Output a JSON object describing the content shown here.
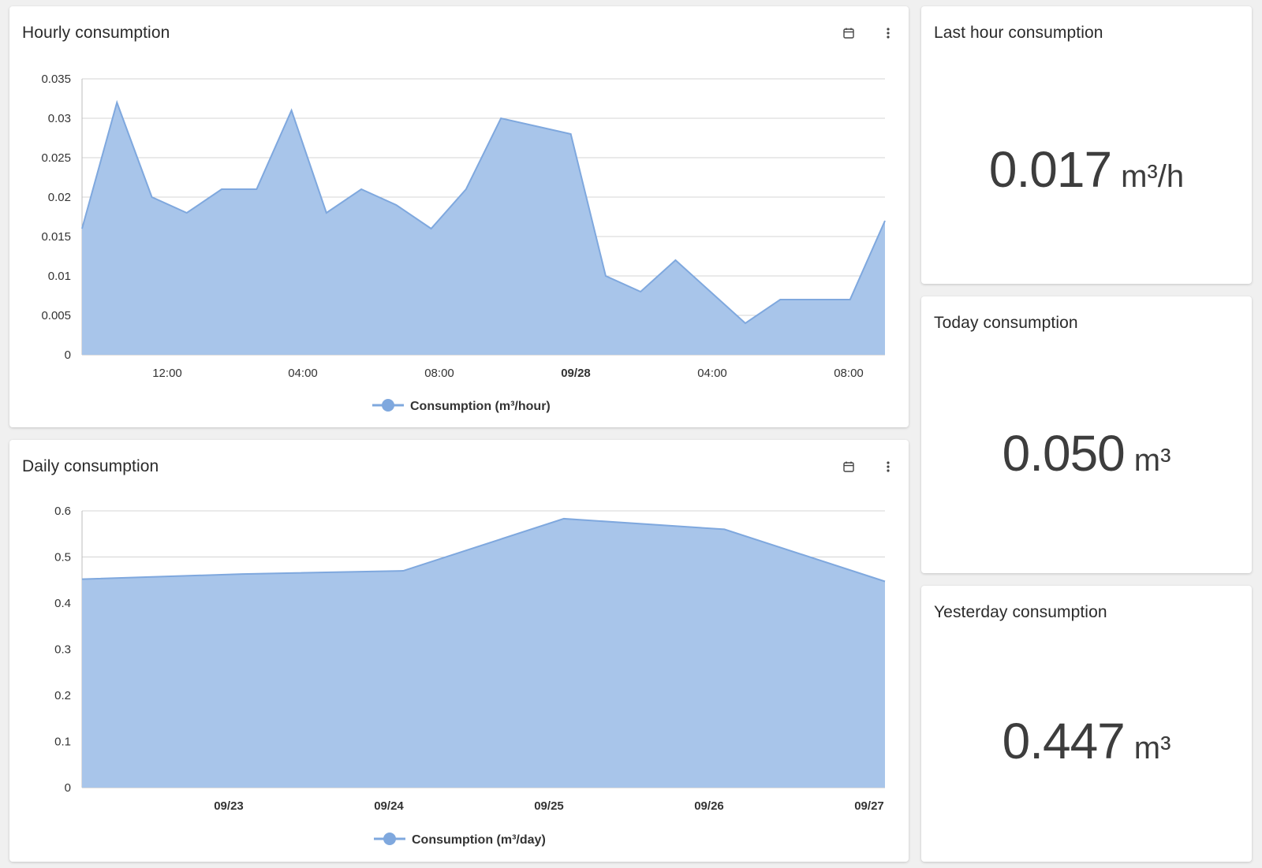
{
  "colors": {
    "accent": "#7fa8de",
    "area_fill": "#a8c5ea",
    "grid": "#d4d4d4",
    "card_bg": "#ffffff",
    "page_bg": "#f0f0f0"
  },
  "hourly_card": {
    "title": "Hourly consumption",
    "calendar_icon": "calendar-icon",
    "menu_icon": "more-vert-icon"
  },
  "daily_card": {
    "title": "Daily consumption",
    "calendar_icon": "calendar-icon",
    "menu_icon": "more-vert-icon"
  },
  "stats": {
    "last_hour": {
      "title": "Last hour consumption",
      "value": "0.017",
      "unit": "m³/h"
    },
    "today": {
      "title": "Today consumption",
      "value": "0.050",
      "unit": "m³"
    },
    "yesterday": {
      "title": "Yesterday consumption",
      "value": "0.447",
      "unit": "m³"
    }
  },
  "chart_data": [
    {
      "type": "area",
      "legend": "top-right",
      "series": [
        {
          "name": "Consumption (m³/hour)",
          "values": [
            0.016,
            0.032,
            0.02,
            0.018,
            0.021,
            0.021,
            0.031,
            0.018,
            0.021,
            0.019,
            0.016,
            0.021,
            0.03,
            0.029,
            0.028,
            0.01,
            0.008,
            0.012,
            0.008,
            0.004,
            0.007,
            0.007,
            0.007,
            0.017
          ]
        }
      ],
      "x_ticks": [
        {
          "label": "12:00",
          "bold": false
        },
        {
          "label": "04:00",
          "bold": false
        },
        {
          "label": "08:00",
          "bold": false
        },
        {
          "label": "09/28",
          "bold": true
        },
        {
          "label": "04:00",
          "bold": false
        },
        {
          "label": "08:00",
          "bold": false
        }
      ],
      "y_ticks": [
        "0",
        "0.005",
        "0.01",
        "0.015",
        "0.02",
        "0.025",
        "0.03",
        "0.035"
      ],
      "ylim": [
        0,
        0.035
      ],
      "grid": true,
      "legend_position": "bottom"
    },
    {
      "type": "area",
      "series": [
        {
          "name": "Consumption (m³/day)",
          "values": [
            0.452,
            0.463,
            0.47,
            0.583,
            0.56,
            0.447
          ]
        }
      ],
      "x_ticks": [
        {
          "label": "09/23",
          "bold": true
        },
        {
          "label": "09/24",
          "bold": true
        },
        {
          "label": "09/25",
          "bold": true
        },
        {
          "label": "09/26",
          "bold": true
        },
        {
          "label": "09/27",
          "bold": true
        }
      ],
      "y_ticks": [
        "0",
        "0.1",
        "0.2",
        "0.3",
        "0.4",
        "0.5",
        "0.6"
      ],
      "ylim": [
        0,
        0.6
      ],
      "grid": true,
      "legend_position": "bottom"
    }
  ]
}
